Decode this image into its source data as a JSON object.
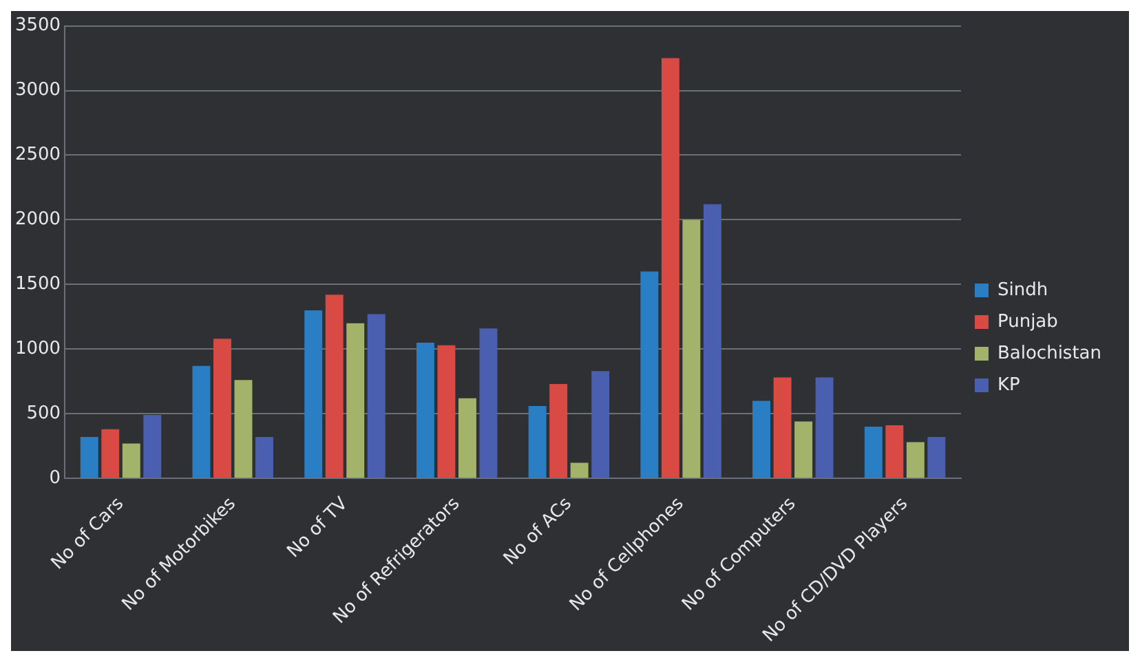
{
  "chart_data": {
    "type": "bar",
    "categories": [
      "No of Cars",
      "No of Motorbikes",
      "No of TV",
      "No of Refrigerators",
      "No of ACs",
      "No of Cellphones",
      "No of Computers",
      "No of CD/DVD Players"
    ],
    "series": [
      {
        "name": "Sindh",
        "color": "#2a7fc4",
        "values": [
          320,
          870,
          1300,
          1050,
          560,
          1600,
          600,
          400
        ]
      },
      {
        "name": "Punjab",
        "color": "#d94a45",
        "values": [
          380,
          1080,
          1420,
          1030,
          730,
          3250,
          780,
          410
        ]
      },
      {
        "name": "Balochistan",
        "color": "#a3b36a",
        "values": [
          270,
          760,
          1200,
          620,
          120,
          2000,
          440,
          280
        ]
      },
      {
        "name": "KP",
        "color": "#4a5fb0",
        "values": [
          490,
          320,
          1270,
          1160,
          830,
          2120,
          780,
          320
        ]
      }
    ],
    "ylim": [
      0,
      3500
    ],
    "yticks": [
      0,
      500,
      1000,
      1500,
      2000,
      2500,
      3000,
      3500
    ],
    "grid": "y",
    "legend": "right"
  }
}
